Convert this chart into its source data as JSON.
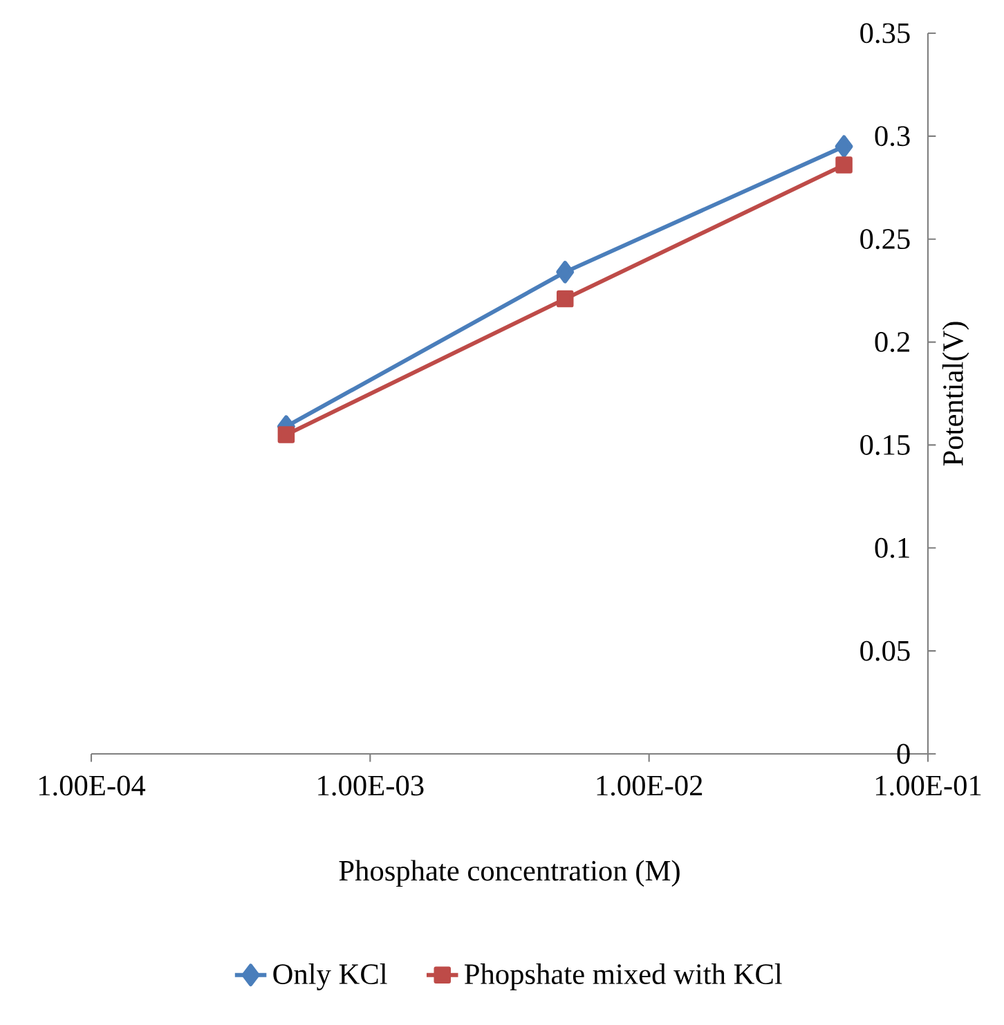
{
  "chart_data": {
    "type": "line",
    "xlabel": "Phosphate concentration (M)",
    "ylabel": "Potential(V)",
    "log": "x",
    "x": [
      0.0005,
      0.005,
      0.05
    ],
    "series": [
      {
        "name": "Only KCl",
        "color": "#4a7ebb",
        "marker": "diamond",
        "values": [
          0.159,
          0.234,
          0.295
        ]
      },
      {
        "name": "Phopshate mixed with KCl",
        "color": "#be4b48",
        "marker": "square",
        "values": [
          0.155,
          0.221,
          0.286
        ]
      }
    ],
    "xlim": [
      0.0001,
      0.1
    ],
    "xticks": [
      {
        "value": 0.0001,
        "label": "1.00E-04"
      },
      {
        "value": 0.001,
        "label": "1.00E-03"
      },
      {
        "value": 0.01,
        "label": "1.00E-02"
      },
      {
        "value": 0.1,
        "label": "1.00E-01"
      }
    ],
    "ylim": [
      0,
      0.35
    ],
    "yticks": [
      0,
      0.05,
      0.1,
      0.15,
      0.2,
      0.25,
      0.3,
      0.35
    ],
    "grid": false,
    "legend": "bottom",
    "line_style": "solid"
  }
}
